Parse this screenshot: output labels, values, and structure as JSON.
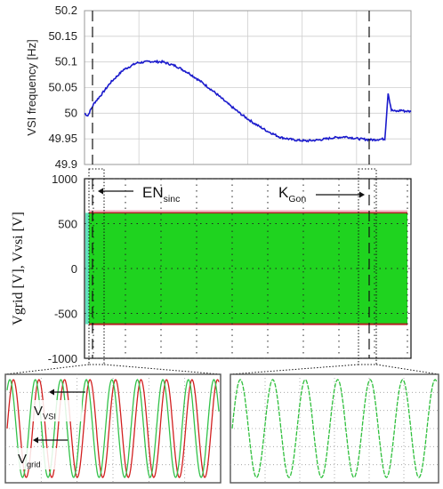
{
  "chart_data": [
    {
      "type": "line",
      "title": "",
      "xlabel": "",
      "ylabel": "VSI frequency [Hz]",
      "ylim": [
        49.9,
        50.2
      ],
      "yticks": [
        "50.2",
        "50.15",
        "50.1",
        "50.05",
        "50",
        "49.95",
        "49.9"
      ],
      "grid": true,
      "series": [
        {
          "color": "#1a1acc",
          "x": [
            0,
            1,
            2,
            3,
            5,
            8,
            12,
            16,
            20,
            24,
            28,
            32,
            36,
            40,
            44,
            48,
            52,
            56,
            60,
            64,
            68,
            72,
            76,
            80,
            84,
            88,
            92,
            93,
            94,
            95,
            96,
            97,
            98,
            99,
            100
          ],
          "y": [
            50.0,
            49.995,
            50.008,
            50.02,
            50.035,
            50.06,
            50.085,
            50.098,
            50.101,
            50.1,
            50.092,
            50.078,
            50.06,
            50.04,
            50.018,
            49.998,
            49.98,
            49.965,
            49.953,
            49.948,
            49.946,
            49.948,
            49.952,
            49.954,
            49.95,
            49.948,
            49.95,
            50.04,
            50.006,
            50.004,
            50.004,
            50.006,
            50.004,
            50.004,
            50.003
          ]
        }
      ]
    },
    {
      "type": "area",
      "title": "",
      "xlabel": "",
      "ylabel": "Vgrid [V], Vvsi [V]",
      "ylim": [
        -1000,
        1000
      ],
      "yticks": [
        "1000",
        "500",
        "0",
        "-500",
        "-1000"
      ],
      "grid": true,
      "envelope": {
        "upper": 620,
        "lower": -620
      },
      "series": [
        {
          "name": "Vgrid",
          "color": "#1fd31f"
        },
        {
          "name": "Vvsi",
          "color": "#b02020"
        }
      ],
      "annotations": [
        {
          "text": "EN",
          "sub": "sinc"
        },
        {
          "text": "K",
          "sub": "Gon"
        }
      ]
    },
    {
      "type": "line",
      "title": "",
      "inset": "left",
      "series": [
        {
          "name": "VVSI",
          "color": "#d22020",
          "cycles": 8.3,
          "phase": 0
        },
        {
          "name": "Vgrid",
          "color": "#33c24a",
          "cycles": 8.3,
          "phase": 0.9
        }
      ],
      "annotations": [
        {
          "text": "V",
          "sub": "VSI"
        },
        {
          "text": "V",
          "sub": "grid"
        }
      ]
    },
    {
      "type": "line",
      "title": "",
      "inset": "right",
      "series": [
        {
          "color": "#2fbf3c",
          "cycles": 6.3,
          "phase": 0
        }
      ]
    }
  ]
}
